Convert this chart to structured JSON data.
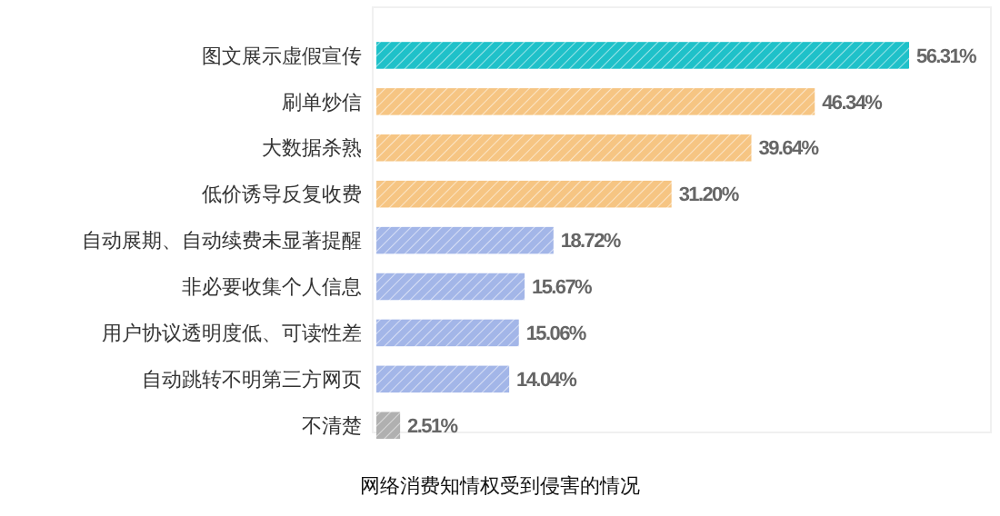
{
  "chart_data": {
    "type": "bar",
    "orientation": "horizontal",
    "title": "网络消费知情权受到侵害的情况",
    "categories": [
      "图文展示虚假宣传",
      "刷单炒信",
      "大数据杀熟",
      "低价诱导反复收费",
      "自动展期、自动续费未显著提醒",
      "非必要收集个人信息",
      "用户协议透明度低、可读性差",
      "自动跳转不明第三方网页",
      "不清楚"
    ],
    "values": [
      56.31,
      46.34,
      39.64,
      31.2,
      18.72,
      15.67,
      15.06,
      14.04,
      2.51
    ],
    "colors": [
      "#1fc1c9",
      "#f6c583",
      "#f6c583",
      "#f6c583",
      "#a3b6e8",
      "#a3b6e8",
      "#a3b6e8",
      "#a3b6e8",
      "#b0b0b0"
    ],
    "value_labels": [
      "56.31%",
      "46.34%",
      "39.64%",
      "31.20%",
      "18.72%",
      "15.67%",
      "15.06%",
      "14.04%",
      "2.51%"
    ]
  }
}
